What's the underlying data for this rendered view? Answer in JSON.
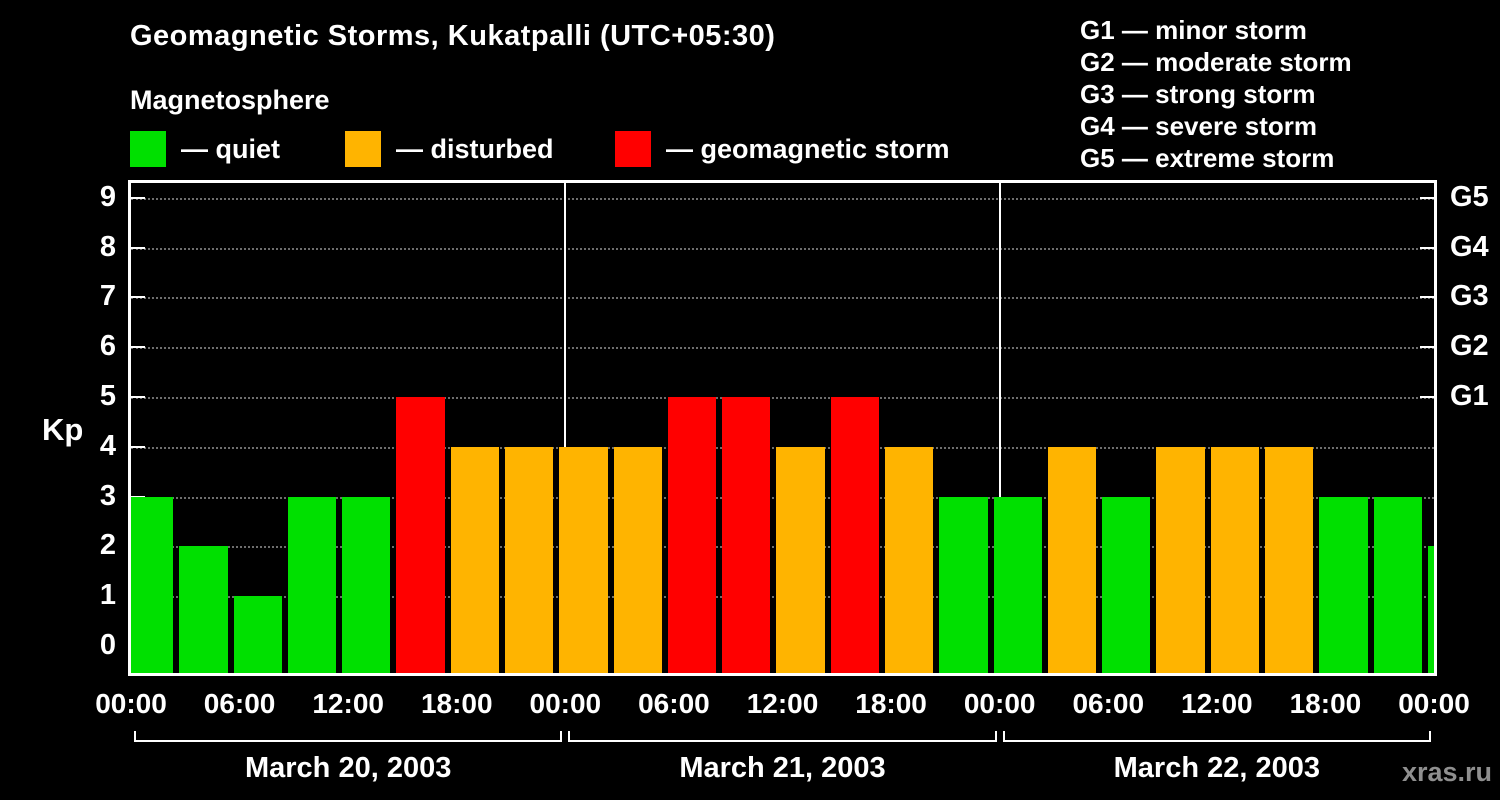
{
  "title": "Geomagnetic Storms, Kukatpalli (UTC+05:30)",
  "subtitle": "Magnetosphere",
  "legend": {
    "items": [
      {
        "key": "quiet",
        "label": "— quiet",
        "color": "#00e000"
      },
      {
        "key": "disturbed",
        "label": "— disturbed",
        "color": "#ffb400"
      },
      {
        "key": "storm",
        "label": "— geomagnetic storm",
        "color": "#ff0000"
      }
    ]
  },
  "g_scale_legend": [
    "G1 — minor storm",
    "G2 — moderate storm",
    "G3 — strong storm",
    "G4 — severe storm",
    "G5 — extreme storm"
  ],
  "watermark": "xras.ru",
  "chart_data": {
    "type": "bar",
    "title": "Geomagnetic Storms, Kukatpalli (UTC+05:30)",
    "ylabel": "Kp",
    "ylim": [
      0,
      9.4
    ],
    "yticks": [
      0,
      1,
      2,
      3,
      4,
      5,
      6,
      7,
      8,
      9
    ],
    "right_axis": [
      {
        "label": "G1",
        "kp": 5
      },
      {
        "label": "G2",
        "kp": 6
      },
      {
        "label": "G3",
        "kp": 7
      },
      {
        "label": "G4",
        "kp": 8
      },
      {
        "label": "G5",
        "kp": 9
      }
    ],
    "x_tick_labels": [
      "00:00",
      "06:00",
      "12:00",
      "18:00",
      "00:00",
      "06:00",
      "12:00",
      "18:00",
      "00:00",
      "06:00",
      "12:00",
      "18:00",
      "00:00"
    ],
    "x_tick_step_hours": 6,
    "day_separator_hours": [
      24,
      48
    ],
    "days": [
      {
        "label": "March 20, 2003",
        "start_hour": 0,
        "end_hour": 24
      },
      {
        "label": "March 21, 2003",
        "start_hour": 24,
        "end_hour": 48
      },
      {
        "label": "March 22, 2003",
        "start_hour": 48,
        "end_hour": 72
      }
    ],
    "colors": {
      "quiet": "#00e000",
      "disturbed": "#ffb400",
      "storm": "#ff0000"
    },
    "background": "#000000",
    "grid": "dotted-horizontal",
    "bars": [
      {
        "start_hour": 0,
        "end_hour": 2.5,
        "kp": 3,
        "condition": "quiet"
      },
      {
        "start_hour": 2.5,
        "end_hour": 5.5,
        "kp": 2,
        "condition": "quiet"
      },
      {
        "start_hour": 5.5,
        "end_hour": 8.5,
        "kp": 1,
        "condition": "quiet"
      },
      {
        "start_hour": 8.5,
        "end_hour": 11.5,
        "kp": 3,
        "condition": "quiet"
      },
      {
        "start_hour": 11.5,
        "end_hour": 14.5,
        "kp": 3,
        "condition": "quiet"
      },
      {
        "start_hour": 14.5,
        "end_hour": 17.5,
        "kp": 5,
        "condition": "storm"
      },
      {
        "start_hour": 17.5,
        "end_hour": 20.5,
        "kp": 4,
        "condition": "disturbed"
      },
      {
        "start_hour": 20.5,
        "end_hour": 23.5,
        "kp": 4,
        "condition": "disturbed"
      },
      {
        "start_hour": 23.5,
        "end_hour": 26.5,
        "kp": 4,
        "condition": "disturbed"
      },
      {
        "start_hour": 26.5,
        "end_hour": 29.5,
        "kp": 4,
        "condition": "disturbed"
      },
      {
        "start_hour": 29.5,
        "end_hour": 32.5,
        "kp": 5,
        "condition": "storm"
      },
      {
        "start_hour": 32.5,
        "end_hour": 35.5,
        "kp": 5,
        "condition": "storm"
      },
      {
        "start_hour": 35.5,
        "end_hour": 38.5,
        "kp": 4,
        "condition": "disturbed"
      },
      {
        "start_hour": 38.5,
        "end_hour": 41.5,
        "kp": 5,
        "condition": "storm"
      },
      {
        "start_hour": 41.5,
        "end_hour": 44.5,
        "kp": 4,
        "condition": "disturbed"
      },
      {
        "start_hour": 44.5,
        "end_hour": 47.5,
        "kp": 3,
        "condition": "quiet"
      },
      {
        "start_hour": 47.5,
        "end_hour": 50.5,
        "kp": 3,
        "condition": "quiet"
      },
      {
        "start_hour": 50.5,
        "end_hour": 53.5,
        "kp": 4,
        "condition": "disturbed"
      },
      {
        "start_hour": 53.5,
        "end_hour": 56.5,
        "kp": 3,
        "condition": "quiet"
      },
      {
        "start_hour": 56.5,
        "end_hour": 59.5,
        "kp": 4,
        "condition": "disturbed"
      },
      {
        "start_hour": 59.5,
        "end_hour": 62.5,
        "kp": 4,
        "condition": "disturbed"
      },
      {
        "start_hour": 62.5,
        "end_hour": 65.5,
        "kp": 4,
        "condition": "disturbed"
      },
      {
        "start_hour": 65.5,
        "end_hour": 68.5,
        "kp": 3,
        "condition": "quiet"
      },
      {
        "start_hour": 68.5,
        "end_hour": 71.5,
        "kp": 3,
        "condition": "quiet"
      },
      {
        "start_hour": 71.5,
        "end_hour": 72,
        "kp": 2,
        "condition": "quiet"
      }
    ]
  }
}
